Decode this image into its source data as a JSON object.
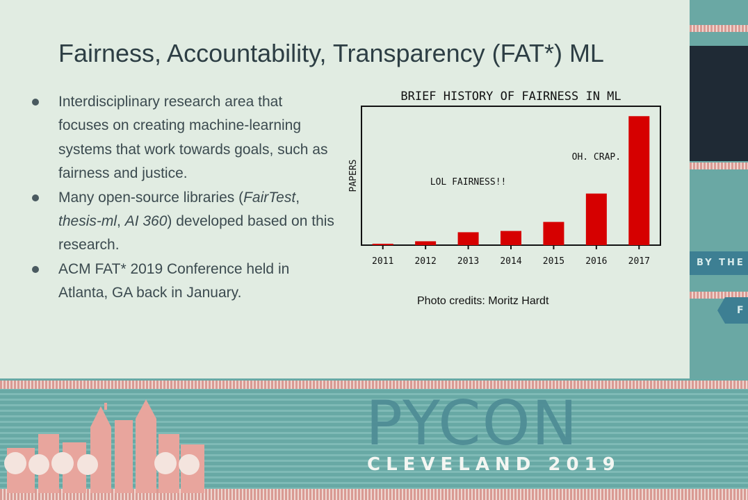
{
  "slide": {
    "title": "Fairness, Accountability, Transparency (FAT*) ML",
    "bullets": [
      {
        "segments": [
          {
            "text": "Interdisciplinary research area that focuses on creating machine-learning systems that work towards goals, such as fairness and justice.",
            "italic": false
          }
        ]
      },
      {
        "segments": [
          {
            "text": "Many open-source libraries (",
            "italic": false
          },
          {
            "text": "FairTest",
            "italic": true
          },
          {
            "text": ", ",
            "italic": false
          },
          {
            "text": "thesis-ml",
            "italic": true
          },
          {
            "text": ", ",
            "italic": false
          },
          {
            "text": "AI 360",
            "italic": true
          },
          {
            "text": ") developed based on this research.",
            "italic": false
          }
        ]
      },
      {
        "segments": [
          {
            "text": "ACM FAT* 2019 Conference held in Atlanta, GA back in January.",
            "italic": false
          }
        ]
      }
    ],
    "photo_credit": "Photo credits: Moritz Hardt"
  },
  "chart_data": {
    "type": "bar",
    "title": "BRIEF HISTORY OF FAIRNESS IN ML",
    "xlabel": "",
    "ylabel": "PAPERS",
    "categories": [
      "2011",
      "2012",
      "2013",
      "2014",
      "2015",
      "2016",
      "2017"
    ],
    "values": [
      1,
      3,
      10,
      11,
      18,
      40,
      100
    ],
    "ylim": [
      0,
      105
    ],
    "color": "#d60000",
    "grid": false,
    "annotations": [
      {
        "text": "LOL FAIRNESS!!",
        "near": "2013"
      },
      {
        "text": "OH. CRAP.",
        "near": "2016"
      }
    ]
  },
  "conference": {
    "logo": "PYCON",
    "city_year": "CLEVELAND 2019",
    "side_tag": "BY THE",
    "side_letter": "F"
  }
}
